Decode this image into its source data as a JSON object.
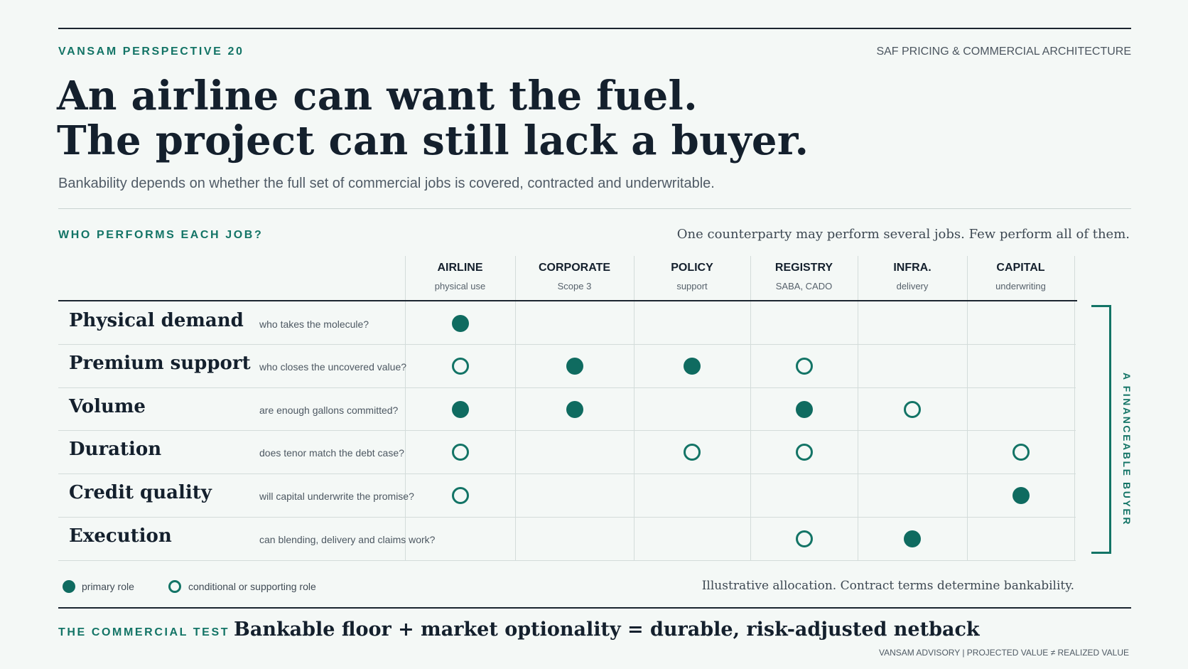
{
  "header": {
    "series": "VANSAM PERSPECTIVE 20",
    "topic": "SAF PRICING & COMMERCIAL ARCHITECTURE"
  },
  "headline": {
    "line1": "An airline can want the fuel.",
    "line2": "The project can still lack a buyer."
  },
  "subhead": "Bankability depends on whether the full set of commercial jobs is covered, contracted and underwritable.",
  "section": {
    "title": "WHO PERFORMS EACH JOB?",
    "note": "One counterparty may perform several jobs. Few perform all of them."
  },
  "columns": [
    {
      "title": "AIRLINE",
      "sub": "physical use"
    },
    {
      "title": "CORPORATE",
      "sub": "Scope 3"
    },
    {
      "title": "POLICY",
      "sub": "support"
    },
    {
      "title": "REGISTRY",
      "sub": "SABA, CADO"
    },
    {
      "title": "INFRA.",
      "sub": "delivery"
    },
    {
      "title": "CAPITAL",
      "sub": "underwriting"
    }
  ],
  "rows": [
    {
      "title": "Physical demand",
      "question": "who takes the molecule?",
      "roles": [
        "primary",
        "",
        "",
        "",
        "",
        ""
      ]
    },
    {
      "title": "Premium support",
      "question": "who closes the uncovered value?",
      "roles": [
        "support",
        "primary",
        "primary",
        "support",
        "",
        ""
      ]
    },
    {
      "title": "Volume",
      "question": "are enough gallons committed?",
      "roles": [
        "primary",
        "primary",
        "",
        "primary",
        "support",
        ""
      ]
    },
    {
      "title": "Duration",
      "question": "does tenor match the debt case?",
      "roles": [
        "support",
        "",
        "support",
        "support",
        "",
        "support"
      ]
    },
    {
      "title": "Credit quality",
      "question": "will capital underwrite the promise?",
      "roles": [
        "support",
        "",
        "",
        "",
        "",
        "primary"
      ]
    },
    {
      "title": "Execution",
      "question": "can blending, delivery and claims work?",
      "roles": [
        "",
        "",
        "",
        "support",
        "primary",
        ""
      ]
    }
  ],
  "bracket_label": "A FINANCEABLE BUYER",
  "legend": {
    "primary": "primary role",
    "support": "conditional or supporting role",
    "note": "Illustrative allocation. Contract terms determine bankability."
  },
  "test": {
    "label": "THE COMMERCIAL TEST",
    "formula": "Bankable floor + market optionality = durable, risk-adjusted netback"
  },
  "footer": "VANSAM ADVISORY | PROJECTED VALUE ≠ REALIZED VALUE",
  "colors": {
    "accent": "#137466",
    "primary_dot": "#0f6b60",
    "ink": "#14202d",
    "background": "#f4f8f6"
  }
}
